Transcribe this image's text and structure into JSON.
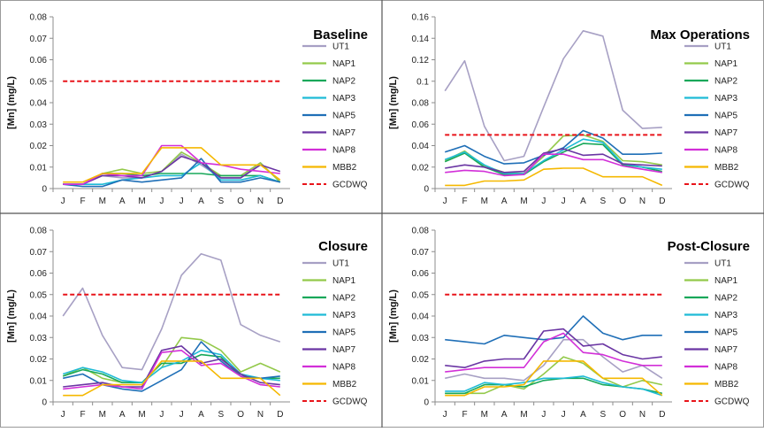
{
  "colors": {
    "UT1": "#a7a0c4",
    "NAP1": "#93c94a",
    "NAP2": "#18a85a",
    "NAP3": "#1fbbd6",
    "NAP5": "#1f6fb7",
    "NAP7": "#6a35a3",
    "NAP8": "#d22fd8",
    "MBB2": "#f5b800",
    "GCDWQ": "#e8141a"
  },
  "chart_data": [
    {
      "type": "line",
      "title": "Baseline",
      "ylabel": "[Mn] (mg/L)",
      "ylim": [
        0,
        0.08
      ],
      "yticks": [
        "0",
        "0.01",
        "0.02",
        "0.03",
        "0.04",
        "0.05",
        "0.06",
        "0.07",
        "0.08"
      ],
      "categories": [
        "J",
        "F",
        "M",
        "A",
        "M",
        "J",
        "J",
        "A",
        "S",
        "O",
        "N",
        "D"
      ],
      "legend_position": "right",
      "series": [
        {
          "name": "UT1",
          "values": [
            0.002,
            0.002,
            0.006,
            0.005,
            0.005,
            0.008,
            0.016,
            0.011,
            0.005,
            0.005,
            0.012,
            0.003
          ]
        },
        {
          "name": "NAP1",
          "values": [
            0.002,
            0.002,
            0.007,
            0.009,
            0.007,
            0.008,
            0.017,
            0.012,
            0.006,
            0.006,
            0.012,
            0.003
          ]
        },
        {
          "name": "NAP2",
          "values": [
            0.002,
            0.002,
            0.007,
            0.007,
            0.006,
            0.007,
            0.007,
            0.007,
            0.006,
            0.006,
            0.006,
            0.003
          ]
        },
        {
          "name": "NAP3",
          "values": [
            0.002,
            0.002,
            0.002,
            0.004,
            0.005,
            0.006,
            0.006,
            0.012,
            0.004,
            0.004,
            0.006,
            0.003
          ]
        },
        {
          "name": "NAP5",
          "values": [
            0.002,
            0.001,
            0.001,
            0.004,
            0.003,
            0.004,
            0.005,
            0.014,
            0.003,
            0.003,
            0.005,
            0.003
          ]
        },
        {
          "name": "NAP7",
          "values": [
            0.002,
            0.002,
            0.006,
            0.006,
            0.005,
            0.008,
            0.015,
            0.012,
            0.005,
            0.005,
            0.011,
            0.008
          ]
        },
        {
          "name": "NAP8",
          "values": [
            0.002,
            0.002,
            0.007,
            0.006,
            0.006,
            0.02,
            0.02,
            0.012,
            0.011,
            0.009,
            0.008,
            0.007
          ]
        },
        {
          "name": "MBB2",
          "values": [
            0.003,
            0.003,
            0.007,
            0.007,
            0.007,
            0.019,
            0.019,
            0.019,
            0.011,
            0.011,
            0.011,
            0.004
          ]
        },
        {
          "name": "GCDWQ",
          "values": [
            0.05,
            0.05,
            0.05,
            0.05,
            0.05,
            0.05,
            0.05,
            0.05,
            0.05,
            0.05,
            0.05,
            0.05
          ]
        }
      ]
    },
    {
      "type": "line",
      "title": "Max Operations",
      "ylabel": "[Mn] (mg/L)",
      "ylim": [
        0,
        0.16
      ],
      "yticks": [
        "0",
        "0.02",
        "0.04",
        "0.06",
        "0.08",
        "0.1",
        "0.12",
        "0.14",
        "0.16"
      ],
      "categories": [
        "J",
        "F",
        "M",
        "A",
        "M",
        "J",
        "J",
        "A",
        "S",
        "O",
        "N",
        "D"
      ],
      "legend_position": "right",
      "series": [
        {
          "name": "UT1",
          "values": [
            0.091,
            0.119,
            0.058,
            0.026,
            0.03,
            0.076,
            0.121,
            0.147,
            0.142,
            0.073,
            0.056,
            0.057
          ]
        },
        {
          "name": "NAP1",
          "values": [
            0.026,
            0.035,
            0.021,
            0.015,
            0.014,
            0.03,
            0.049,
            0.05,
            0.044,
            0.026,
            0.025,
            0.022
          ]
        },
        {
          "name": "NAP2",
          "values": [
            0.025,
            0.033,
            0.02,
            0.013,
            0.013,
            0.025,
            0.034,
            0.042,
            0.041,
            0.022,
            0.02,
            0.016
          ]
        },
        {
          "name": "NAP3",
          "values": [
            0.027,
            0.034,
            0.022,
            0.014,
            0.014,
            0.026,
            0.036,
            0.046,
            0.043,
            0.023,
            0.02,
            0.018
          ]
        },
        {
          "name": "NAP5",
          "values": [
            0.034,
            0.04,
            0.03,
            0.023,
            0.024,
            0.031,
            0.038,
            0.054,
            0.047,
            0.032,
            0.032,
            0.033
          ]
        },
        {
          "name": "NAP7",
          "values": [
            0.019,
            0.022,
            0.02,
            0.015,
            0.016,
            0.033,
            0.037,
            0.031,
            0.032,
            0.023,
            0.022,
            0.021
          ]
        },
        {
          "name": "NAP8",
          "values": [
            0.015,
            0.017,
            0.016,
            0.012,
            0.013,
            0.032,
            0.032,
            0.027,
            0.027,
            0.021,
            0.018,
            0.015
          ]
        },
        {
          "name": "MBB2",
          "values": [
            0.003,
            0.003,
            0.007,
            0.007,
            0.008,
            0.018,
            0.019,
            0.019,
            0.011,
            0.011,
            0.011,
            0.003
          ]
        },
        {
          "name": "GCDWQ",
          "values": [
            0.05,
            0.05,
            0.05,
            0.05,
            0.05,
            0.05,
            0.05,
            0.05,
            0.05,
            0.05,
            0.05,
            0.05
          ]
        }
      ]
    },
    {
      "type": "line",
      "title": "Closure",
      "ylabel": "[Mn] (mg/L)",
      "ylim": [
        0,
        0.08
      ],
      "yticks": [
        "0",
        "0.01",
        "0.02",
        "0.03",
        "0.04",
        "0.05",
        "0.06",
        "0.07",
        "0.08"
      ],
      "categories": [
        "J",
        "F",
        "M",
        "A",
        "M",
        "J",
        "J",
        "A",
        "S",
        "O",
        "N",
        "D"
      ],
      "legend_position": "right",
      "series": [
        {
          "name": "UT1",
          "values": [
            0.04,
            0.053,
            0.031,
            0.016,
            0.015,
            0.034,
            0.059,
            0.069,
            0.066,
            0.036,
            0.031,
            0.028
          ]
        },
        {
          "name": "NAP1",
          "values": [
            0.012,
            0.016,
            0.011,
            0.009,
            0.009,
            0.016,
            0.03,
            0.029,
            0.024,
            0.014,
            0.018,
            0.014
          ]
        },
        {
          "name": "NAP2",
          "values": [
            0.012,
            0.015,
            0.013,
            0.009,
            0.009,
            0.018,
            0.018,
            0.022,
            0.021,
            0.012,
            0.011,
            0.011
          ]
        },
        {
          "name": "NAP3",
          "values": [
            0.013,
            0.016,
            0.014,
            0.01,
            0.009,
            0.016,
            0.019,
            0.024,
            0.022,
            0.013,
            0.011,
            0.01
          ]
        },
        {
          "name": "NAP5",
          "values": [
            0.011,
            0.013,
            0.008,
            0.006,
            0.005,
            0.01,
            0.015,
            0.028,
            0.019,
            0.012,
            0.011,
            0.012
          ]
        },
        {
          "name": "NAP7",
          "values": [
            0.007,
            0.008,
            0.009,
            0.007,
            0.007,
            0.024,
            0.026,
            0.018,
            0.02,
            0.013,
            0.009,
            0.008
          ]
        },
        {
          "name": "NAP8",
          "values": [
            0.006,
            0.007,
            0.008,
            0.007,
            0.006,
            0.023,
            0.024,
            0.017,
            0.018,
            0.012,
            0.008,
            0.007
          ]
        },
        {
          "name": "MBB2",
          "values": [
            0.003,
            0.003,
            0.008,
            0.008,
            0.008,
            0.019,
            0.019,
            0.019,
            0.011,
            0.011,
            0.011,
            0.003
          ]
        },
        {
          "name": "GCDWQ",
          "values": [
            0.05,
            0.05,
            0.05,
            0.05,
            0.05,
            0.05,
            0.05,
            0.05,
            0.05,
            0.05,
            0.05,
            0.05
          ]
        }
      ]
    },
    {
      "type": "line",
      "title": "Post-Closure",
      "ylabel": "[Mn] (mg/L)",
      "ylim": [
        0,
        0.08
      ],
      "yticks": [
        "0",
        "0.01",
        "0.02",
        "0.03",
        "0.04",
        "0.05",
        "0.06",
        "0.07",
        "0.08"
      ],
      "categories": [
        "J",
        "F",
        "M",
        "A",
        "M",
        "J",
        "J",
        "A",
        "S",
        "O",
        "N",
        "D"
      ],
      "legend_position": "right",
      "series": [
        {
          "name": "UT1",
          "values": [
            0.011,
            0.013,
            0.011,
            0.011,
            0.01,
            0.017,
            0.029,
            0.029,
            0.021,
            0.014,
            0.017,
            0.011
          ]
        },
        {
          "name": "NAP1",
          "values": [
            0.004,
            0.004,
            0.004,
            0.008,
            0.006,
            0.013,
            0.021,
            0.018,
            0.011,
            0.007,
            0.01,
            0.008
          ]
        },
        {
          "name": "NAP2",
          "values": [
            0.004,
            0.004,
            0.008,
            0.008,
            0.007,
            0.01,
            0.011,
            0.011,
            0.008,
            0.007,
            0.006,
            0.004
          ]
        },
        {
          "name": "NAP3",
          "values": [
            0.005,
            0.005,
            0.009,
            0.008,
            0.009,
            0.011,
            0.011,
            0.012,
            0.009,
            0.007,
            0.006,
            0.003
          ]
        },
        {
          "name": "NAP5",
          "values": [
            0.029,
            0.028,
            0.027,
            0.031,
            0.03,
            0.029,
            0.03,
            0.04,
            0.032,
            0.029,
            0.031,
            0.031
          ]
        },
        {
          "name": "NAP7",
          "values": [
            0.017,
            0.016,
            0.019,
            0.02,
            0.02,
            0.033,
            0.034,
            0.026,
            0.027,
            0.022,
            0.02,
            0.021
          ]
        },
        {
          "name": "NAP8",
          "values": [
            0.014,
            0.015,
            0.016,
            0.016,
            0.016,
            0.028,
            0.032,
            0.023,
            0.022,
            0.019,
            0.017,
            0.017
          ]
        },
        {
          "name": "MBB2",
          "values": [
            0.003,
            0.003,
            0.007,
            0.007,
            0.008,
            0.019,
            0.019,
            0.019,
            0.011,
            0.011,
            0.011,
            0.003
          ]
        },
        {
          "name": "GCDWQ",
          "values": [
            0.05,
            0.05,
            0.05,
            0.05,
            0.05,
            0.05,
            0.05,
            0.05,
            0.05,
            0.05,
            0.05,
            0.05
          ]
        }
      ]
    }
  ]
}
